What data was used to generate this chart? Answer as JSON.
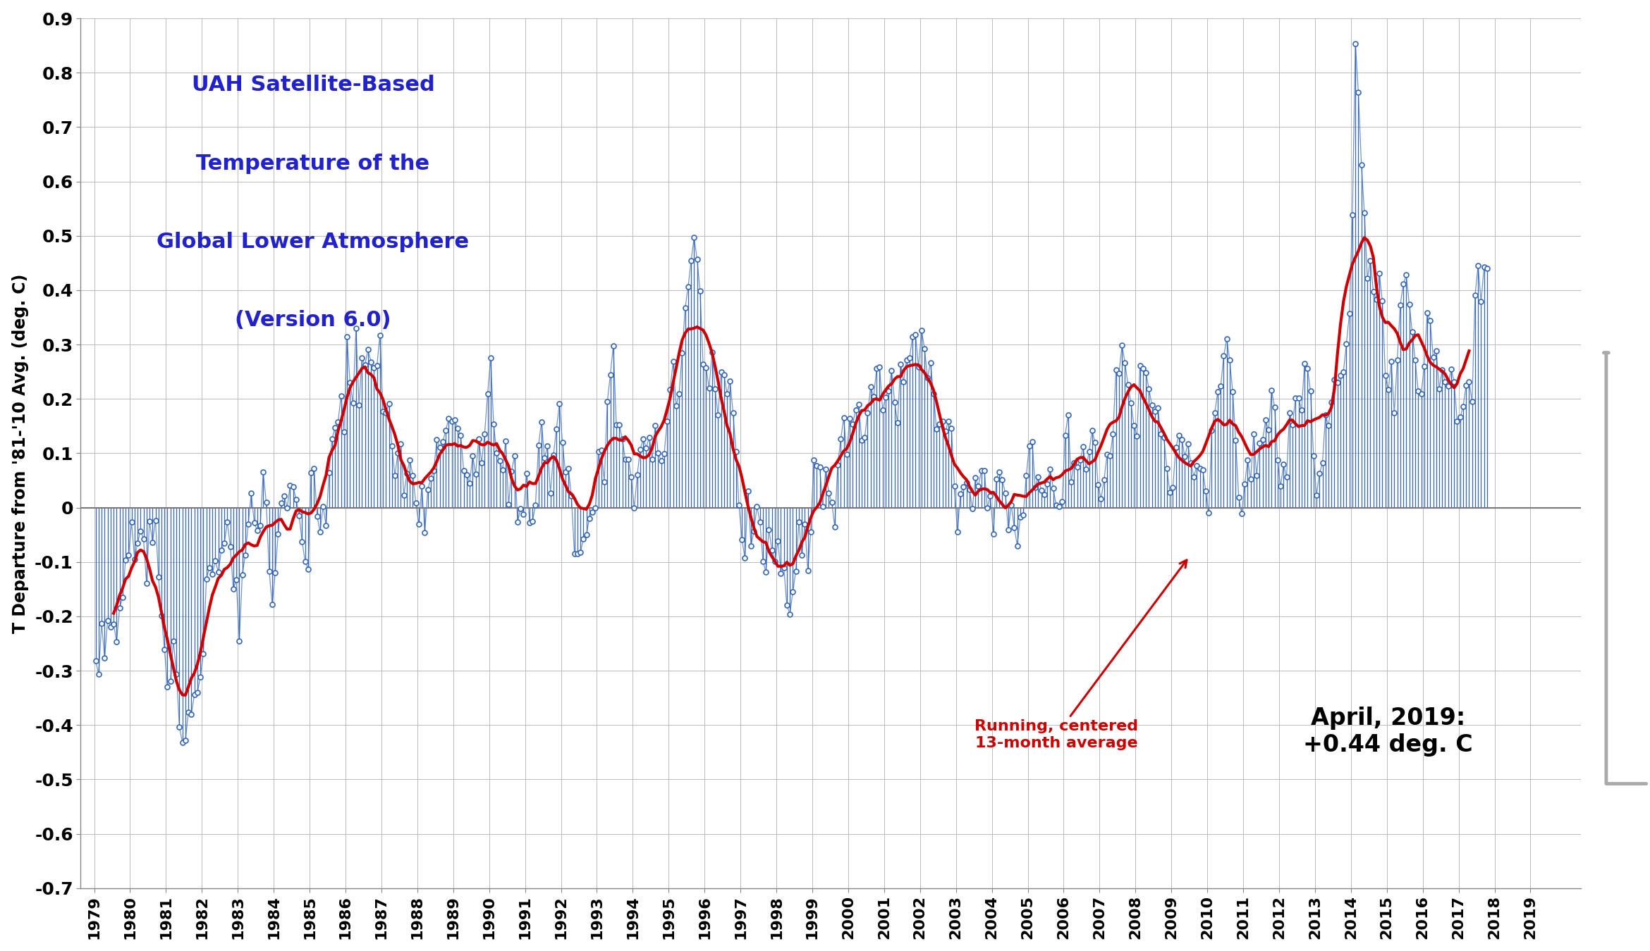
{
  "title_lines": [
    "UAH Satellite-Based",
    "Temperature of the",
    "Global Lower Atmosphere",
    "(Version 6.0)"
  ],
  "title_color": "#2222cc",
  "annotation_text": "Running, centered\n13-month average",
  "annotation_color": "#cc0000",
  "latest_text": "April, 2019:\n+0.44 deg. C",
  "latest_color": "#000000",
  "ylabel": "T Departure from '81-'10 Avg. (deg. C)",
  "ylim": [
    -0.7,
    0.9
  ],
  "yticks": [
    -0.7,
    -0.6,
    -0.5,
    -0.4,
    -0.3,
    -0.2,
    -0.1,
    0.0,
    0.1,
    0.2,
    0.3,
    0.4,
    0.5,
    0.6,
    0.7,
    0.8,
    0.9
  ],
  "line_color": "#3366bb",
  "smooth_color": "#cc0000",
  "background_color": "#ffffff",
  "grid_color": "#bbbbbb",
  "monthly_data": [
    -0.282,
    -0.306,
    -0.213,
    -0.277,
    -0.208,
    -0.22,
    -0.214,
    -0.247,
    -0.185,
    -0.165,
    -0.096,
    -0.088,
    -0.027,
    -0.095,
    -0.065,
    -0.043,
    -0.057,
    -0.139,
    -0.025,
    -0.064,
    -0.024,
    -0.127,
    -0.199,
    -0.261,
    -0.33,
    -0.319,
    -0.245,
    -0.306,
    -0.404,
    -0.432,
    -0.428,
    -0.376,
    -0.38,
    -0.344,
    -0.34,
    -0.312,
    -0.269,
    -0.131,
    -0.111,
    -0.122,
    -0.098,
    -0.119,
    -0.078,
    -0.066,
    -0.027,
    -0.072,
    -0.15,
    -0.133,
    -0.246,
    -0.124,
    -0.087,
    -0.031,
    0.027,
    -0.028,
    -0.042,
    -0.033,
    0.065,
    0.01,
    -0.117,
    -0.178,
    -0.12,
    -0.048,
    0.008,
    0.022,
    0.0,
    0.041,
    0.038,
    0.015,
    -0.015,
    -0.063,
    -0.099,
    -0.113,
    0.064,
    0.072,
    -0.016,
    -0.044,
    0.002,
    -0.033,
    0.064,
    0.127,
    0.147,
    0.157,
    0.206,
    0.14,
    0.315,
    0.23,
    0.193,
    0.33,
    0.189,
    0.275,
    0.262,
    0.291,
    0.268,
    0.258,
    0.261,
    0.317,
    0.177,
    0.175,
    0.191,
    0.114,
    0.059,
    0.1,
    0.118,
    0.023,
    0.063,
    0.088,
    0.059,
    0.009,
    -0.031,
    0.04,
    -0.046,
    0.033,
    0.054,
    0.068,
    0.125,
    0.111,
    0.121,
    0.142,
    0.164,
    0.159,
    0.162,
    0.146,
    0.133,
    0.068,
    0.061,
    0.045,
    0.096,
    0.062,
    0.127,
    0.083,
    0.136,
    0.209,
    0.275,
    0.154,
    0.1,
    0.086,
    0.07,
    0.122,
    0.006,
    0.067,
    0.096,
    -0.027,
    -0.002,
    -0.012,
    0.063,
    -0.028,
    -0.025,
    0.005,
    0.115,
    0.158,
    0.091,
    0.113,
    0.027,
    0.097,
    0.145,
    0.191,
    0.12,
    0.065,
    0.072,
    0.021,
    -0.085,
    -0.085,
    -0.082,
    -0.058,
    -0.05,
    -0.02,
    -0.008,
    -0.001,
    0.103,
    0.106,
    0.048,
    0.195,
    0.244,
    0.298,
    0.152,
    0.152,
    0.126,
    0.089,
    0.089,
    0.056,
    -0.001,
    0.06,
    0.107,
    0.127,
    0.11,
    0.129,
    0.089,
    0.151,
    0.1,
    0.086,
    0.099,
    0.159,
    0.217,
    0.269,
    0.188,
    0.21,
    0.285,
    0.367,
    0.406,
    0.454,
    0.497,
    0.457,
    0.399,
    0.264,
    0.258,
    0.22,
    0.286,
    0.219,
    0.17,
    0.25,
    0.244,
    0.21,
    0.233,
    0.175,
    0.103,
    0.004,
    -0.059,
    -0.093,
    0.031,
    -0.07,
    -0.043,
    0.002,
    -0.026,
    -0.099,
    -0.118,
    -0.041,
    -0.078,
    -0.099,
    -0.061,
    -0.121,
    -0.111,
    -0.18,
    -0.196,
    -0.155,
    -0.117,
    -0.027,
    -0.088,
    -0.031,
    -0.116,
    -0.044,
    0.088,
    0.077,
    0.074,
    0.002,
    0.071,
    0.027,
    0.01,
    -0.035,
    0.079,
    0.126,
    0.165,
    0.098,
    0.164,
    0.154,
    0.18,
    0.19,
    0.124,
    0.129,
    0.174,
    0.222,
    0.204,
    0.256,
    0.259,
    0.18,
    0.203,
    0.215,
    0.252,
    0.194,
    0.156,
    0.264,
    0.232,
    0.271,
    0.275,
    0.315,
    0.318,
    0.259,
    0.326,
    0.293,
    0.239,
    0.267,
    0.209,
    0.145,
    0.154,
    0.159,
    0.141,
    0.159,
    0.146,
    0.039,
    -0.045,
    0.025,
    0.038,
    0.046,
    0.033,
    -0.002,
    0.055,
    0.04,
    0.068,
    0.068,
    0.0,
    0.022,
    -0.049,
    0.053,
    0.066,
    0.051,
    0.027,
    -0.041,
    0.005,
    -0.037,
    -0.07,
    -0.018,
    -0.014,
    0.059,
    0.113,
    0.121,
    0.037,
    0.057,
    0.032,
    0.024,
    0.044,
    0.071,
    0.036,
    0.004,
    0.002,
    0.011,
    0.133,
    0.171,
    0.047,
    0.083,
    0.074,
    0.087,
    0.112,
    0.071,
    0.103,
    0.142,
    0.12,
    0.042,
    0.016,
    0.051,
    0.098,
    0.095,
    0.136,
    0.254,
    0.247,
    0.299,
    0.267,
    0.226,
    0.192,
    0.151,
    0.132,
    0.261,
    0.256,
    0.248,
    0.218,
    0.189,
    0.177,
    0.183,
    0.135,
    0.129,
    0.072,
    0.028,
    0.037,
    0.111,
    0.133,
    0.125,
    0.094,
    0.117,
    0.083,
    0.057,
    0.077,
    0.072,
    0.069,
    0.03,
    -0.01,
    0.142,
    0.175,
    0.213,
    0.224,
    0.279,
    0.31,
    0.271,
    0.213,
    0.124,
    0.019,
    -0.011,
    0.043,
    0.088,
    0.052,
    0.135,
    0.059,
    0.119,
    0.125,
    0.161,
    0.143,
    0.216,
    0.185,
    0.087,
    0.039,
    0.08,
    0.056,
    0.175,
    0.152,
    0.202,
    0.202,
    0.179,
    0.265,
    0.256,
    0.214,
    0.095,
    0.023,
    0.063,
    0.082,
    0.17,
    0.151,
    0.194,
    0.235,
    0.23,
    0.243,
    0.25,
    0.302,
    0.357,
    0.538,
    0.854,
    0.764,
    0.631,
    0.543,
    0.422,
    0.455,
    0.397,
    0.383,
    0.431,
    0.38,
    0.243,
    0.217,
    0.269,
    0.174,
    0.272,
    0.373,
    0.411,
    0.428,
    0.374,
    0.323,
    0.271,
    0.214,
    0.21,
    0.26,
    0.359,
    0.344,
    0.277,
    0.289,
    0.219,
    0.253,
    0.231,
    0.224,
    0.255,
    0.232,
    0.159,
    0.166,
    0.186,
    0.225,
    0.232,
    0.195,
    0.391,
    0.445,
    0.379,
    0.443,
    0.44
  ],
  "start_year": 1979,
  "start_month": 1
}
